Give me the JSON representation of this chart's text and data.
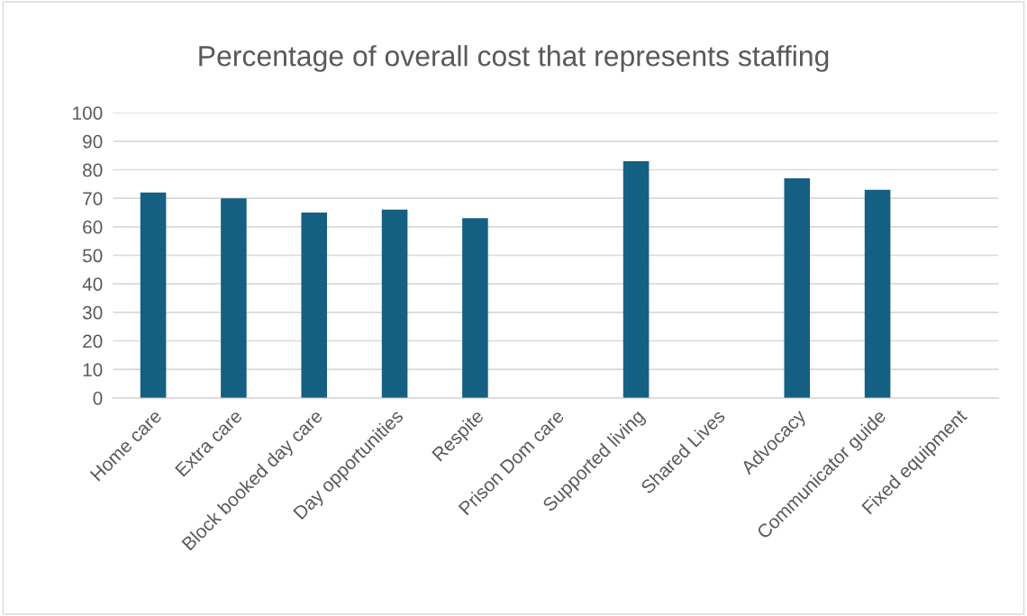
{
  "chart_data": {
    "type": "bar",
    "title": "Percentage of overall cost that represents staffing",
    "categories": [
      "Home care",
      "Extra care",
      "Block booked day care",
      "Day opportunities",
      "Respite",
      "Prison Dom care",
      "Supported living",
      "Shared Lives",
      "Advocacy",
      "Communicator guide",
      "Fixed equipment"
    ],
    "values": [
      72,
      70,
      65,
      66,
      63,
      null,
      83,
      null,
      77,
      73,
      null
    ],
    "color": "#156082",
    "ylim": [
      0,
      100
    ],
    "yticks": [
      0,
      10,
      20,
      30,
      40,
      50,
      60,
      70,
      80,
      90,
      100
    ],
    "grid": "y"
  }
}
